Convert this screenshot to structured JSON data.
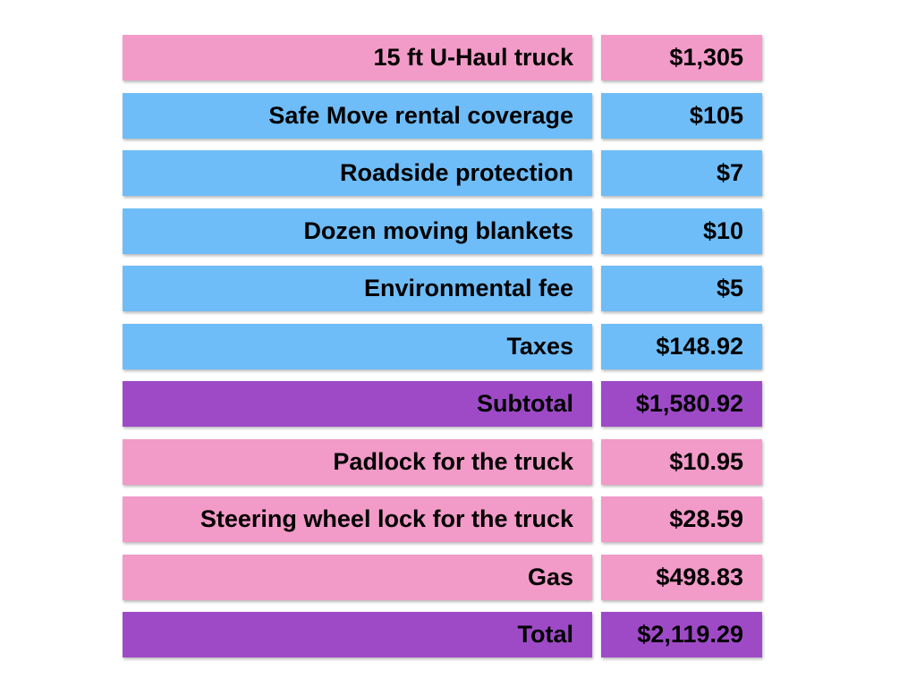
{
  "colors": {
    "pink": "#f29ac8",
    "blue": "#6ebdf8",
    "purple": "#9e4ac7"
  },
  "rows": [
    {
      "label": "15 ft U-Haul truck",
      "amount": "$1,305",
      "color": "pink"
    },
    {
      "label": "Safe Move rental coverage",
      "amount": "$105",
      "color": "blue"
    },
    {
      "label": "Roadside protection",
      "amount": "$7",
      "color": "blue"
    },
    {
      "label": "Dozen moving blankets",
      "amount": "$10",
      "color": "blue"
    },
    {
      "label": "Environmental fee",
      "amount": "$5",
      "color": "blue"
    },
    {
      "label": "Taxes",
      "amount": "$148.92",
      "color": "blue"
    },
    {
      "label": "Subtotal",
      "amount": "$1,580.92",
      "color": "purple"
    },
    {
      "label": "Padlock for the truck",
      "amount": "$10.95",
      "color": "pink"
    },
    {
      "label": "Steering wheel lock for the truck",
      "amount": "$28.59",
      "color": "pink"
    },
    {
      "label": "Gas",
      "amount": "$498.83",
      "color": "pink"
    },
    {
      "label": "Total",
      "amount": "$2,119.29",
      "color": "purple"
    }
  ]
}
